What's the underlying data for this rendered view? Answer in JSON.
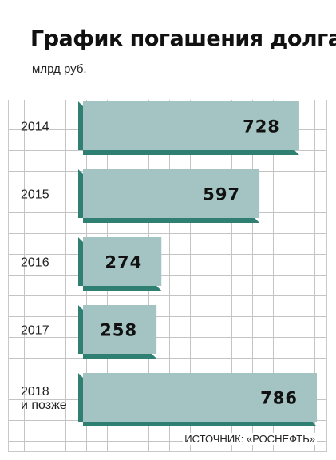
{
  "title": "График погашения долга",
  "unit": "млрд руб.",
  "source": "ИСТОЧНИК: «РОСНЕФТЬ»",
  "chart_data": {
    "type": "bar",
    "orientation": "horizontal",
    "categories": [
      [
        "2014"
      ],
      [
        "2015"
      ],
      [
        "2016"
      ],
      [
        "2017"
      ],
      [
        "2018",
        "и позже"
      ]
    ],
    "values": [
      728,
      597,
      274,
      258,
      786
    ],
    "colors": {
      "bar": "#a3c4c2",
      "shadow": "#2f8073",
      "grid": "#c4c4c4"
    },
    "xlim": [
      0,
      786
    ],
    "grid": true
  }
}
